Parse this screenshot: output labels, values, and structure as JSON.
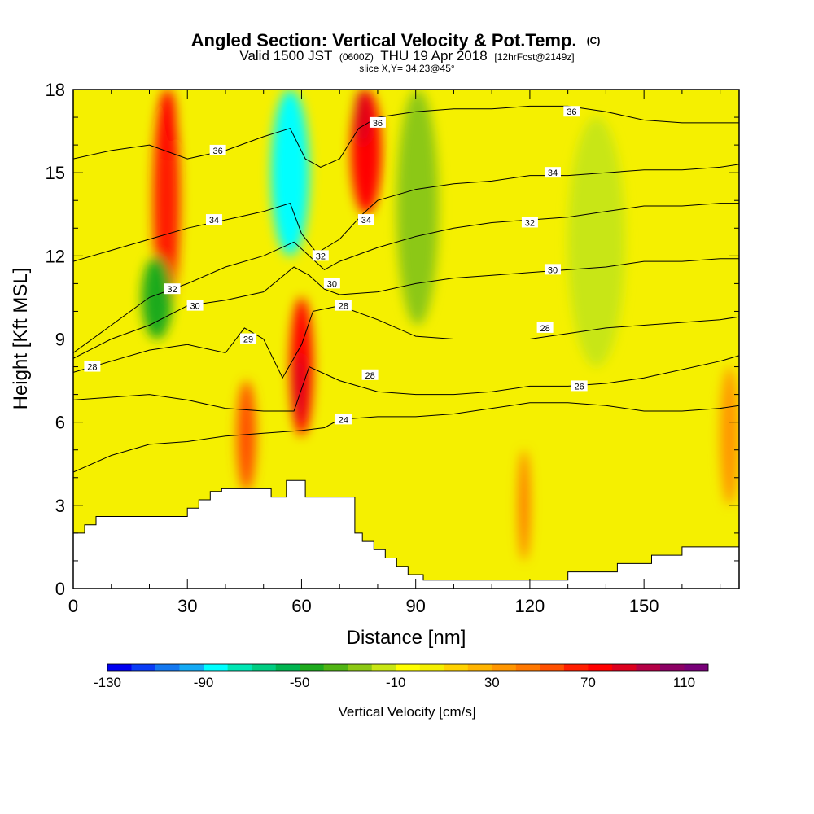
{
  "chart_data": {
    "type": "heatmap",
    "title": "Angled Section: Vertical Velocity & Pot.Temp.",
    "title_unit": "(C)",
    "subtitle_main_1": "Valid 1500 JST",
    "subtitle_small_1": "(0600Z)",
    "subtitle_main_2": "THU 19 Apr 2018",
    "subtitle_small_2": "[12hrFcst@2149z]",
    "subtitle_line3": "slice X,Y= 34,23@45°",
    "xlabel": "Distance [nm]",
    "ylabel": "Height [Kft MSL]",
    "xlim": [
      0,
      175
    ],
    "ylim": [
      0,
      18
    ],
    "xticks": [
      0,
      30,
      60,
      90,
      120,
      150
    ],
    "xtick_labels": [
      "0",
      "30",
      "60",
      "90",
      "120",
      "150"
    ],
    "yticks": [
      0,
      3,
      6,
      9,
      12,
      15,
      18
    ],
    "ytick_labels": [
      "0",
      "3",
      "6",
      "9",
      "12",
      "15",
      "18"
    ],
    "colorbar": {
      "label": "Vertical Velocity [cm/s]",
      "levels": [
        -130,
        -120,
        -110,
        -100,
        -90,
        -80,
        -70,
        -60,
        -50,
        -40,
        -30,
        -20,
        -10,
        0,
        10,
        20,
        30,
        40,
        50,
        60,
        70,
        80,
        90,
        100,
        110,
        120
      ],
      "colors": [
        "#0000f0",
        "#0a3cf5",
        "#1478f0",
        "#14aaf5",
        "#00ffff",
        "#00e6b4",
        "#00cd82",
        "#00b450",
        "#1eaa1e",
        "#50b414",
        "#8cc814",
        "#c8e614",
        "#ffff00",
        "#f5f000",
        "#ffd200",
        "#ffb400",
        "#ff9600",
        "#ff7800",
        "#ff5000",
        "#ff1e00",
        "#ff0000",
        "#dc001e",
        "#b40046",
        "#8c0064",
        "#780078"
      ],
      "tick_values": [
        -130,
        -90,
        -50,
        -10,
        30,
        70,
        110
      ],
      "tick_labels": [
        "-130",
        "-90",
        "-50",
        "-10",
        "30",
        "70",
        "110"
      ]
    },
    "background_value_color": "#f5f000",
    "velocity_cells": [
      {
        "x": [
          21,
          28
        ],
        "y": [
          10.0,
          18.0
        ],
        "value": 60,
        "note_color": "#ff7800"
      },
      {
        "x": [
          23,
          27
        ],
        "y": [
          15.5,
          18.0
        ],
        "value": 75,
        "note_color": "#ff1e00"
      },
      {
        "x": [
          73,
          81
        ],
        "y": [
          13.5,
          18.0
        ],
        "value": 70,
        "note_color": "#ff1e00"
      },
      {
        "x": [
          74,
          78
        ],
        "y": [
          16.0,
          18.0
        ],
        "value": 85,
        "note_color": "#dc001e"
      },
      {
        "x": [
          57,
          63
        ],
        "y": [
          5.5,
          10.5
        ],
        "value": 75,
        "note_color": "#ff1e00"
      },
      {
        "x": [
          58,
          61
        ],
        "y": [
          6.0,
          8.5
        ],
        "value": 85,
        "note_color": "#dc001e"
      },
      {
        "x": [
          52,
          62
        ],
        "y": [
          12.0,
          18.0
        ],
        "value": -85,
        "note_color": "#00ffff"
      },
      {
        "x": [
          18,
          26
        ],
        "y": [
          9.0,
          12.0
        ],
        "value": -45,
        "note_color": "#1eaa1e"
      },
      {
        "x": [
          85,
          96
        ],
        "y": [
          9.5,
          18.0
        ],
        "value": -25,
        "note_color": "#c8e614"
      },
      {
        "x": [
          130,
          145
        ],
        "y": [
          8.0,
          17.0
        ],
        "value": -20,
        "note_color": "#c8e614"
      },
      {
        "x": [
          43,
          48
        ],
        "y": [
          3.5,
          7.5
        ],
        "value": 50,
        "note_color": "#ff7800"
      },
      {
        "x": [
          170,
          175
        ],
        "y": [
          3.0,
          8.0
        ],
        "value": 35,
        "note_color": "#ffb400"
      },
      {
        "x": [
          117,
          120
        ],
        "y": [
          1.0,
          5.0
        ],
        "value": 45,
        "note_color": "#ff9600"
      }
    ],
    "terrain": {
      "x": [
        0,
        3,
        3,
        6,
        6,
        30,
        30,
        33,
        33,
        36,
        36,
        39,
        39,
        52,
        52,
        56,
        56,
        61,
        61,
        65,
        65,
        74,
        74,
        76,
        76,
        79,
        79,
        82,
        82,
        85,
        85,
        88,
        88,
        92,
        92,
        104,
        104,
        111,
        111,
        130,
        130,
        143,
        143,
        152,
        152,
        160,
        160,
        175,
        175,
        0
      ],
      "y": [
        2.0,
        2.0,
        2.3,
        2.3,
        2.6,
        2.6,
        2.9,
        2.9,
        3.2,
        3.2,
        3.5,
        3.5,
        3.6,
        3.6,
        3.3,
        3.3,
        3.9,
        3.9,
        3.3,
        3.3,
        3.3,
        3.3,
        2.0,
        2.0,
        1.7,
        1.7,
        1.4,
        1.4,
        1.1,
        1.1,
        0.8,
        0.8,
        0.5,
        0.5,
        0.3,
        0.3,
        0.3,
        0.3,
        0.3,
        0.3,
        0.6,
        0.6,
        0.9,
        0.9,
        1.2,
        1.2,
        1.5,
        1.5,
        0,
        0
      ]
    },
    "isentropes": [
      {
        "label": "24",
        "x": [
          0,
          10,
          20,
          30,
          40,
          50,
          60,
          66,
          70,
          80,
          90,
          100,
          110,
          120,
          130,
          140,
          150,
          160,
          170,
          175
        ],
        "y": [
          4.2,
          4.8,
          5.2,
          5.3,
          5.5,
          5.6,
          5.7,
          5.8,
          6.1,
          6.2,
          6.2,
          6.3,
          6.5,
          6.7,
          6.7,
          6.6,
          6.4,
          6.4,
          6.5,
          6.6
        ],
        "label_pos": [
          71,
          6.1
        ]
      },
      {
        "label": "26",
        "x": [
          0,
          10,
          20,
          30,
          40,
          50,
          58,
          62,
          70,
          80,
          90,
          100,
          110,
          120,
          130,
          140,
          150,
          160,
          170,
          175
        ],
        "y": [
          6.8,
          6.9,
          7.0,
          6.8,
          6.5,
          6.4,
          6.4,
          8.0,
          7.5,
          7.1,
          7.0,
          7.0,
          7.1,
          7.3,
          7.3,
          7.4,
          7.6,
          7.9,
          8.2,
          8.4
        ],
        "label_pos": [
          133,
          7.3
        ]
      },
      {
        "label": "28",
        "x": [
          0,
          10,
          20,
          30,
          40,
          45,
          50,
          55,
          60,
          63,
          70,
          80,
          90,
          100,
          110,
          120,
          130,
          140,
          150,
          160,
          170,
          175
        ],
        "y": [
          7.8,
          8.2,
          8.6,
          8.8,
          8.5,
          9.4,
          9.0,
          7.6,
          8.8,
          10.0,
          10.2,
          9.7,
          9.1,
          9.0,
          9.0,
          9.0,
          9.2,
          9.4,
          9.5,
          9.6,
          9.7,
          9.8
        ],
        "label_pos": [
          124,
          9.4
        ]
      },
      {
        "label": "30",
        "x": [
          0,
          10,
          20,
          30,
          40,
          50,
          58,
          62,
          66,
          70,
          80,
          90,
          100,
          110,
          120,
          130,
          140,
          150,
          160,
          170,
          175
        ],
        "y": [
          8.3,
          9.0,
          9.5,
          10.2,
          10.4,
          10.7,
          11.6,
          11.3,
          10.8,
          10.6,
          10.7,
          11.0,
          11.2,
          11.3,
          11.4,
          11.5,
          11.6,
          11.8,
          11.8,
          11.9,
          11.9
        ],
        "label_pos": [
          126,
          11.5
        ]
      },
      {
        "label": "32",
        "x": [
          0,
          10,
          20,
          30,
          40,
          50,
          58,
          62,
          66,
          70,
          80,
          90,
          100,
          110,
          120,
          130,
          140,
          150,
          160,
          170,
          175
        ],
        "y": [
          8.5,
          9.5,
          10.5,
          11.0,
          11.6,
          12.0,
          12.5,
          12.0,
          11.5,
          11.8,
          12.3,
          12.7,
          13.0,
          13.2,
          13.3,
          13.4,
          13.6,
          13.8,
          13.8,
          13.9,
          13.9
        ],
        "label_pos": [
          120,
          13.2
        ]
      },
      {
        "label": "34",
        "x": [
          0,
          10,
          20,
          30,
          40,
          50,
          57,
          60,
          64,
          70,
          76,
          80,
          90,
          100,
          110,
          120,
          130,
          140,
          150,
          160,
          170,
          175
        ],
        "y": [
          11.8,
          12.2,
          12.6,
          13.0,
          13.3,
          13.6,
          13.9,
          12.8,
          12.1,
          12.6,
          13.5,
          14.0,
          14.4,
          14.6,
          14.7,
          14.9,
          14.9,
          15.0,
          15.1,
          15.1,
          15.2,
          15.3
        ],
        "label_pos": [
          126,
          15.0
        ]
      },
      {
        "label": "36",
        "x": [
          0,
          10,
          20,
          30,
          40,
          50,
          57,
          61,
          65,
          70,
          75,
          80,
          90,
          100,
          110,
          120,
          130,
          140,
          150,
          160,
          170,
          175
        ],
        "y": [
          15.5,
          15.8,
          16.0,
          15.5,
          15.8,
          16.3,
          16.6,
          15.5,
          15.2,
          15.5,
          16.6,
          17.0,
          17.2,
          17.3,
          17.3,
          17.4,
          17.4,
          17.2,
          16.9,
          16.8,
          16.8,
          16.8
        ],
        "label_pos": [
          131,
          17.2
        ]
      }
    ],
    "contour_labels": [
      {
        "text": "28",
        "x": 5,
        "y": 8.0
      },
      {
        "text": "32",
        "x": 26,
        "y": 10.8
      },
      {
        "text": "30",
        "x": 32,
        "y": 10.2
      },
      {
        "text": "34",
        "x": 37,
        "y": 13.3
      },
      {
        "text": "36",
        "x": 38,
        "y": 15.8
      },
      {
        "text": "29",
        "x": 46,
        "y": 9.0
      },
      {
        "text": "32",
        "x": 65,
        "y": 12.0
      },
      {
        "text": "30",
        "x": 68,
        "y": 11.0
      },
      {
        "text": "28",
        "x": 71,
        "y": 10.2
      },
      {
        "text": "34",
        "x": 77,
        "y": 13.3
      },
      {
        "text": "36",
        "x": 80,
        "y": 16.8
      },
      {
        "text": "28",
        "x": 78,
        "y": 7.7
      },
      {
        "text": "24",
        "x": 71,
        "y": 6.1
      }
    ]
  }
}
